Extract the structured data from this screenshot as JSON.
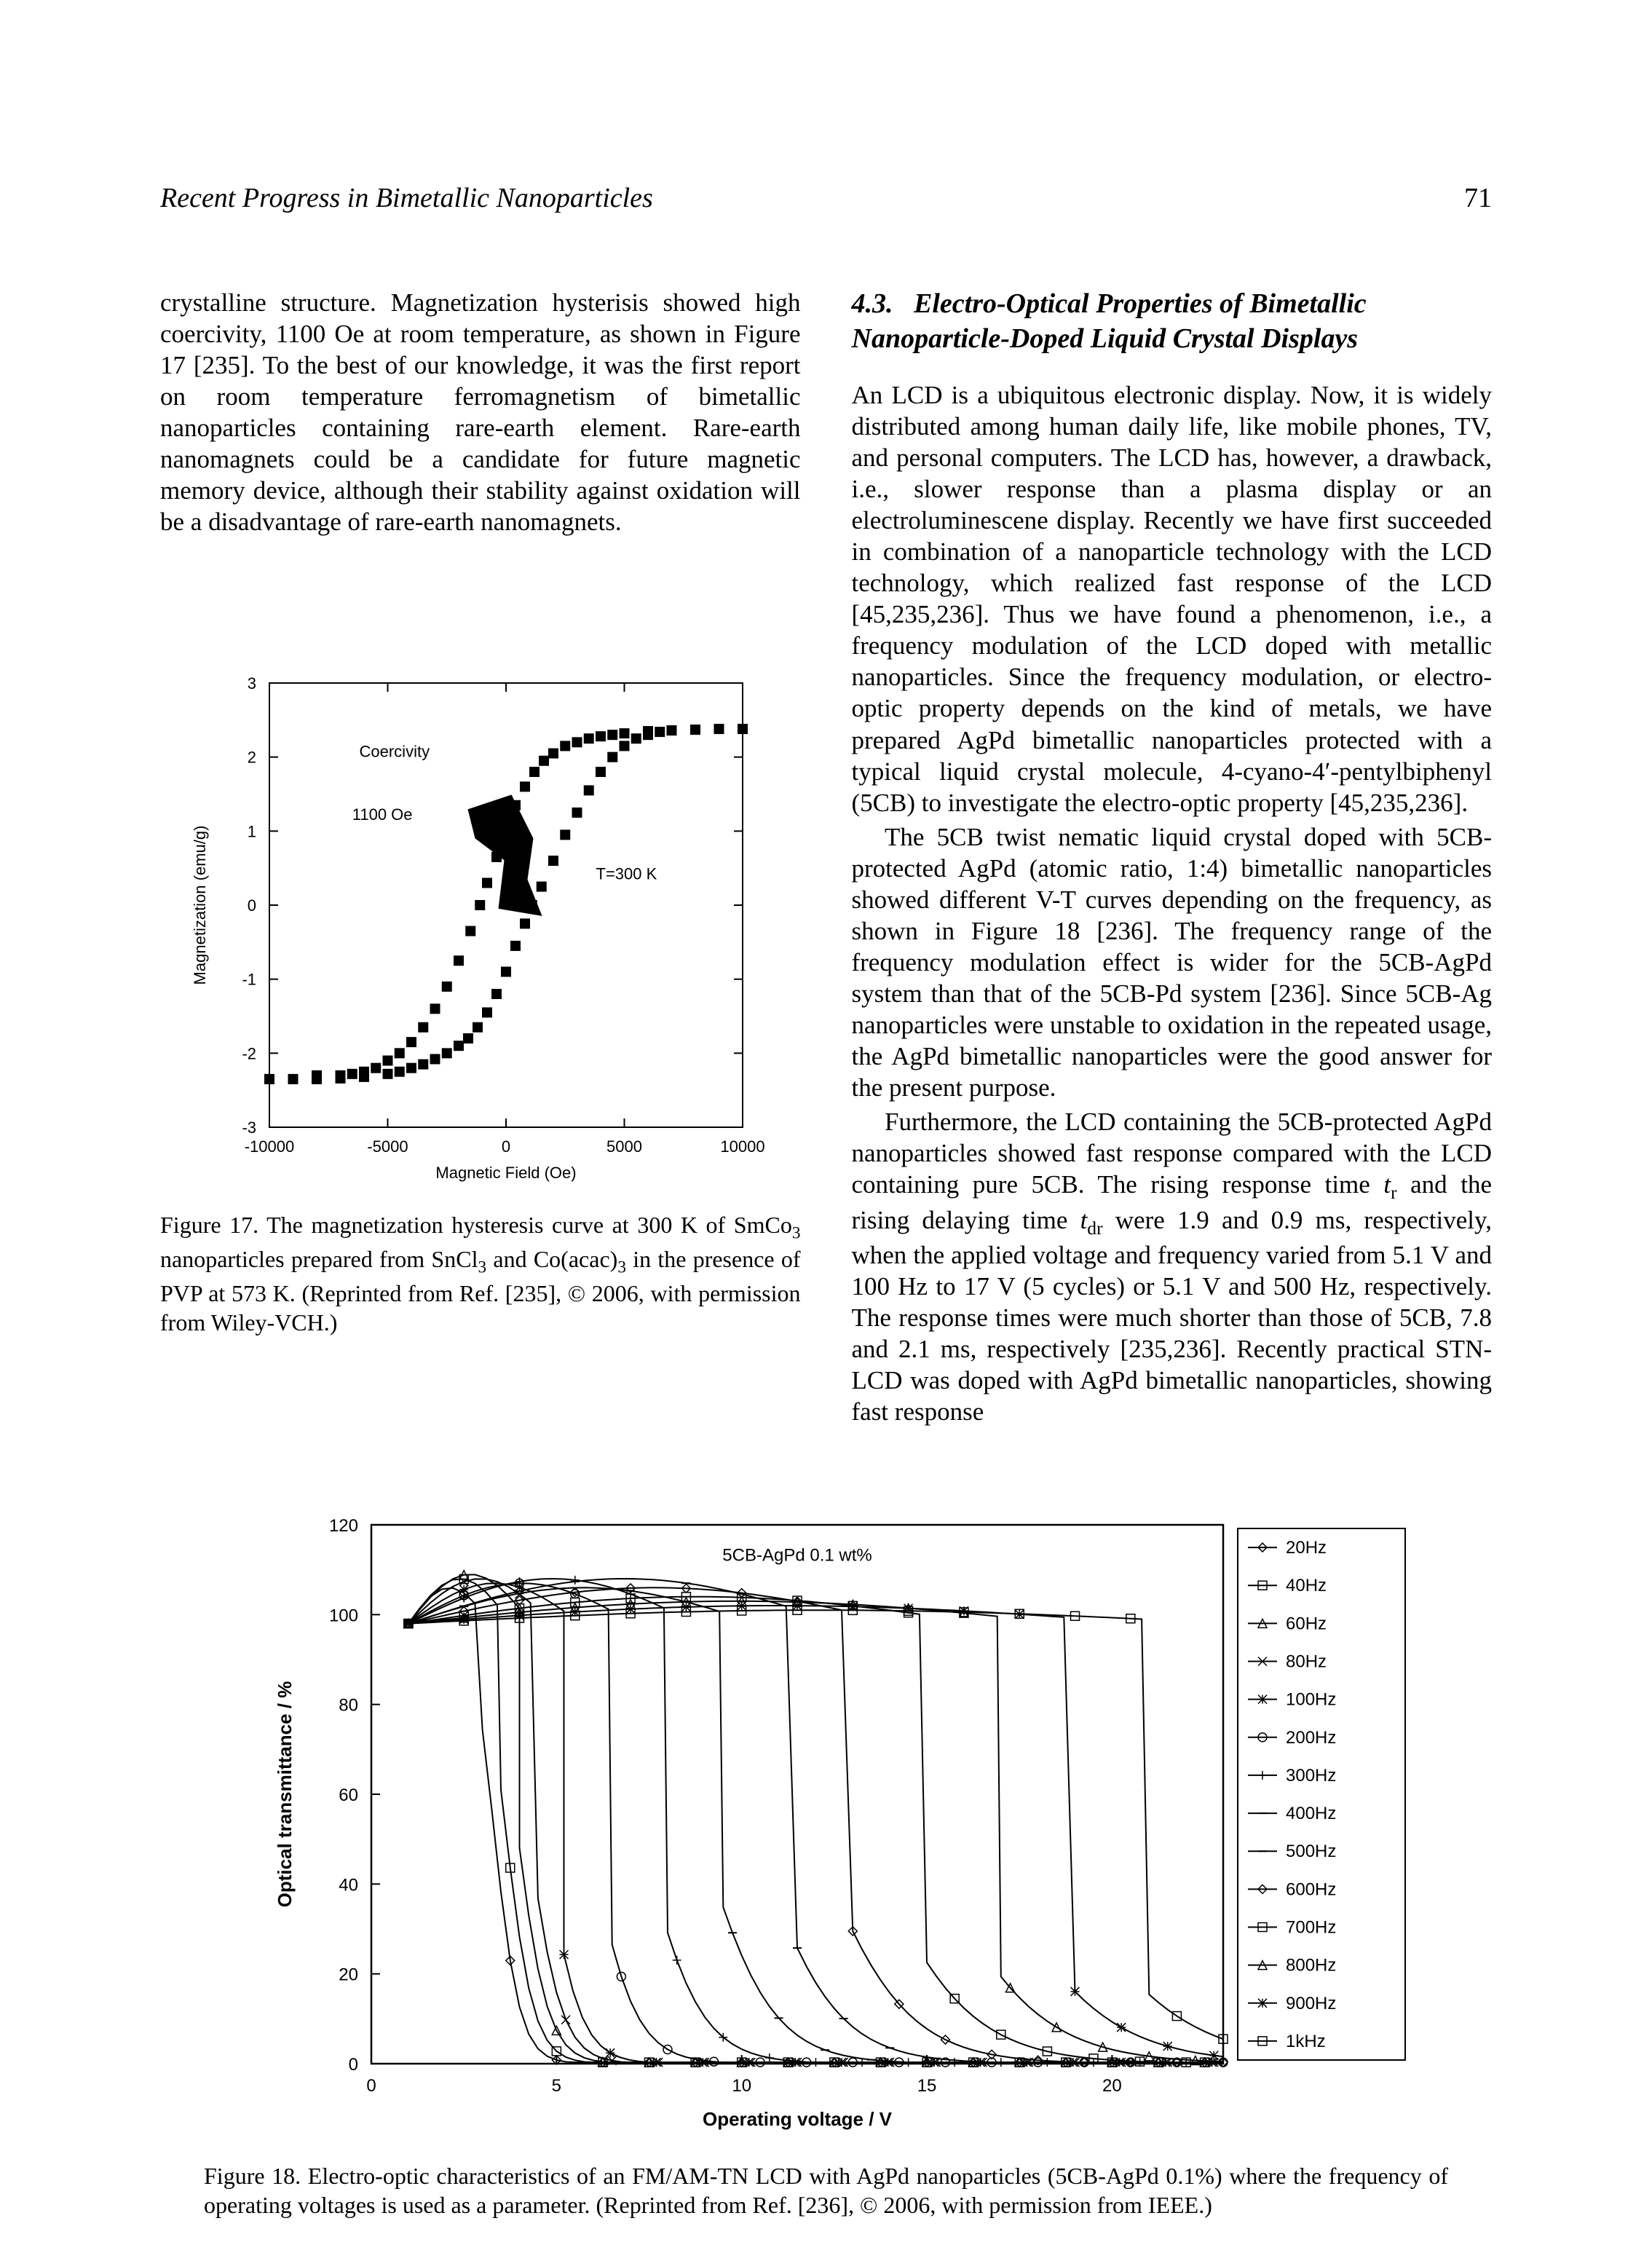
{
  "header": {
    "running_title": "Recent Progress in Bimetallic Nanoparticles",
    "page_number": "71"
  },
  "left_column": {
    "para1": "crystalline structure. Magnetization hysterisis showed high coercivity, 1100 Oe at room temperature, as shown in Figure 17 [235]. To the best of our knowledge, it was the first report on room temperature ferromagnetism of bimetallic nanoparticles containing rare-earth element. Rare-earth nanomagnets could be a candidate for future magnetic memory device, although their stability against oxidation will be a disadvantage of rare-earth nanomagnets."
  },
  "right_column": {
    "section_number": "4.3.",
    "section_title": "Electro-Optical Properties of Bimetallic Nanoparticle-Doped Liquid Crystal Displays",
    "para1": "An LCD is a ubiquitous electronic display. Now, it is widely distributed among human daily life, like mobile phones, TV, and personal computers. The LCD has, however, a drawback, i.e., slower response than a plasma display or an electroluminescene display. Recently we have first succeeded in combination of a nanoparticle technology with the LCD technology, which realized fast response of the LCD [45,235,236]. Thus we have found a phenomenon, i.e., a frequency modulation of the LCD doped with metallic nanoparticles. Since the frequency modulation, or electro-optic property depends on the kind of metals, we have prepared AgPd bimetallic nanoparticles protected with a typical liquid crystal molecule, 4-cyano-4′-pentylbiphenyl (5CB) to investigate the electro-optic property [45,235,236].",
    "para2": "The 5CB twist nematic liquid crystal doped with 5CB-protected AgPd (atomic ratio, 1:4) bimetallic nanoparticles showed different V-T curves depending on the frequency, as shown in Figure 18 [236]. The frequency range of the frequency modulation effect is wider for the 5CB-AgPd system than that of the 5CB-Pd system [236]. Since 5CB-Ag nanoparticles were unstable to oxidation in the repeated usage, the AgPd bimetallic nanoparticles were the good answer for the present purpose.",
    "para3_a": "Furthermore, the LCD containing the 5CB-protected AgPd nanoparticles showed fast response compared with the LCD containing pure 5CB. The rising response time ",
    "para3_b": " and the rising delaying time ",
    "para3_c": " were 1.9 and 0.9 ms, respectively, when the applied voltage and frequency varied from 5.1 V and 100 Hz to 17 V (5 cycles) or 5.1 V and 500 Hz, respectively. The response times were much shorter than those of 5CB, 7.8 and 2.1 ms, respectively [235,236]. Recently practical STN-LCD was doped with AgPd bimetallic nanoparticles, showing fast response",
    "tr_sym": "t",
    "tr_sub": "r",
    "tdr_sym": "t",
    "tdr_sub": "dr"
  },
  "figure17": {
    "type": "scatter-hysteresis",
    "xlabel": "Magnetic Field (Oe)",
    "ylabel": "Magnetization (emu/g)",
    "xlim": [
      -10000,
      10000
    ],
    "ylim": [
      -3,
      3
    ],
    "xticks": [
      -10000,
      -5000,
      0,
      5000,
      10000
    ],
    "yticks": [
      -3,
      -2,
      -1,
      0,
      1,
      2,
      3
    ],
    "annotation_coercivity": "Coercivity",
    "annotation_value": "1100 Oe",
    "annotation_temp": "T=300 K",
    "point_color": "#000000",
    "axis_color": "#000000",
    "background_color": "#ffffff",
    "label_fontsize": 22,
    "tick_fontsize": 22,
    "marker_size": 7,
    "curve_upper": [
      [
        -10000,
        -2.35
      ],
      [
        -9000,
        -2.35
      ],
      [
        -8000,
        -2.3
      ],
      [
        -7000,
        -2.3
      ],
      [
        -6500,
        -2.28
      ],
      [
        -6000,
        -2.25
      ],
      [
        -5500,
        -2.2
      ],
      [
        -5000,
        -2.1
      ],
      [
        -4500,
        -2.0
      ],
      [
        -4000,
        -1.85
      ],
      [
        -3500,
        -1.65
      ],
      [
        -3000,
        -1.4
      ],
      [
        -2500,
        -1.1
      ],
      [
        -2000,
        -0.75
      ],
      [
        -1500,
        -0.35
      ],
      [
        -1100,
        0.0
      ],
      [
        -800,
        0.3
      ],
      [
        -400,
        0.65
      ],
      [
        0,
        1.05
      ],
      [
        400,
        1.35
      ],
      [
        800,
        1.6
      ],
      [
        1200,
        1.8
      ],
      [
        1600,
        1.95
      ],
      [
        2000,
        2.05
      ],
      [
        2500,
        2.15
      ],
      [
        3000,
        2.2
      ],
      [
        3500,
        2.25
      ],
      [
        4000,
        2.28
      ],
      [
        4500,
        2.3
      ],
      [
        5000,
        2.32
      ],
      [
        6000,
        2.35
      ],
      [
        7000,
        2.36
      ],
      [
        8000,
        2.37
      ],
      [
        9000,
        2.38
      ],
      [
        10000,
        2.38
      ]
    ],
    "curve_lower": [
      [
        10000,
        2.38
      ],
      [
        9000,
        2.38
      ],
      [
        8000,
        2.37
      ],
      [
        7000,
        2.36
      ],
      [
        6500,
        2.34
      ],
      [
        6000,
        2.3
      ],
      [
        5500,
        2.25
      ],
      [
        5000,
        2.15
      ],
      [
        4500,
        2.0
      ],
      [
        4000,
        1.8
      ],
      [
        3500,
        1.55
      ],
      [
        3000,
        1.25
      ],
      [
        2500,
        0.95
      ],
      [
        2000,
        0.6
      ],
      [
        1500,
        0.25
      ],
      [
        1100,
        0.0
      ],
      [
        800,
        -0.25
      ],
      [
        400,
        -0.55
      ],
      [
        0,
        -0.9
      ],
      [
        -400,
        -1.2
      ],
      [
        -800,
        -1.45
      ],
      [
        -1200,
        -1.65
      ],
      [
        -1600,
        -1.8
      ],
      [
        -2000,
        -1.9
      ],
      [
        -2500,
        -2.0
      ],
      [
        -3000,
        -2.08
      ],
      [
        -3500,
        -2.15
      ],
      [
        -4000,
        -2.2
      ],
      [
        -4500,
        -2.25
      ],
      [
        -5000,
        -2.28
      ],
      [
        -6000,
        -2.32
      ],
      [
        -7000,
        -2.34
      ],
      [
        -8000,
        -2.35
      ],
      [
        -9000,
        -2.35
      ],
      [
        -10000,
        -2.35
      ]
    ],
    "caption_a": "Figure 17.   The magnetization hysteresis curve at 300 K of SmCo",
    "caption_b": " nanoparticles prepared from SnCl",
    "caption_c": " and Co(acac)",
    "caption_d": " in the presence of PVP at 573 K. (Reprinted from Ref. [235], © 2006, with permission from Wiley-VCH.)",
    "sub3": "3"
  },
  "figure18": {
    "type": "line-multi",
    "xlabel": "Operating voltage / V",
    "ylabel": "Optical transmittance / %",
    "annotation": "5CB-AgPd 0.1 wt%",
    "xlim": [
      0,
      23
    ],
    "ylim": [
      0,
      120
    ],
    "xticks": [
      0,
      5,
      10,
      15,
      20
    ],
    "yticks": [
      0,
      20,
      40,
      60,
      80,
      100,
      120
    ],
    "line_color": "#000000",
    "background_color": "#ffffff",
    "axis_color": "#000000",
    "label_fontsize": 26,
    "tick_fontsize": 24,
    "line_width": 2,
    "legend_items": [
      "20Hz",
      "40Hz",
      "60Hz",
      "80Hz",
      "100Hz",
      "200Hz",
      "300Hz",
      "400Hz",
      "500Hz",
      "600Hz",
      "700Hz",
      "800Hz",
      "900Hz",
      "1kHz"
    ],
    "legend_markers": [
      "diamond",
      "square",
      "triangle",
      "x",
      "asterisk",
      "circle",
      "plus",
      "dash",
      "dash",
      "diamond",
      "square",
      "triangle",
      "asterisk",
      "square"
    ],
    "series": [
      {
        "label": "20Hz",
        "v50": 3.3,
        "slope": 1.0,
        "peak_v": 3.0,
        "top": 106
      },
      {
        "label": "40Hz",
        "v50": 3.6,
        "slope": 1.1,
        "peak_v": 3.5,
        "top": 108
      },
      {
        "label": "60Hz",
        "v50": 3.9,
        "slope": 1.2,
        "peak_v": 4.0,
        "top": 109
      },
      {
        "label": "80Hz",
        "v50": 4.2,
        "slope": 1.3,
        "peak_v": 4.5,
        "top": 108
      },
      {
        "label": "100Hz",
        "v50": 4.6,
        "slope": 1.4,
        "peak_v": 5.2,
        "top": 107
      },
      {
        "label": "200Hz",
        "v50": 5.8,
        "slope": 1.8,
        "peak_v": 6.5,
        "top": 107
      },
      {
        "label": "300Hz",
        "v50": 7.2,
        "slope": 2.3,
        "peak_v": 8.0,
        "top": 108
      },
      {
        "label": "400Hz",
        "v50": 8.8,
        "slope": 2.8,
        "peak_v": 9.5,
        "top": 106
      },
      {
        "label": "500Hz",
        "v50": 10.2,
        "slope": 3.2,
        "peak_v": 11.5,
        "top": 108
      },
      {
        "label": "600Hz",
        "v50": 11.8,
        "slope": 3.6,
        "peak_v": 13.0,
        "top": 106
      },
      {
        "label": "700Hz",
        "v50": 13.2,
        "slope": 4.0,
        "peak_v": 15.0,
        "top": 104
      },
      {
        "label": "800Hz",
        "v50": 14.8,
        "slope": 4.3,
        "peak_v": 17.0,
        "top": 103
      },
      {
        "label": "900Hz",
        "v50": 16.3,
        "slope": 4.6,
        "peak_v": 19.0,
        "top": 102
      },
      {
        "label": "1kHz",
        "v50": 18.0,
        "slope": 5.0,
        "peak_v": 21.0,
        "top": 101
      }
    ],
    "caption": "Figure 18.   Electro-optic characteristics of an FM/AM-TN LCD with AgPd nanoparticles (5CB-AgPd 0.1%) where the frequency of operating voltages is used as a parameter. (Reprinted from Ref. [236], © 2006, with permission from IEEE.)"
  }
}
